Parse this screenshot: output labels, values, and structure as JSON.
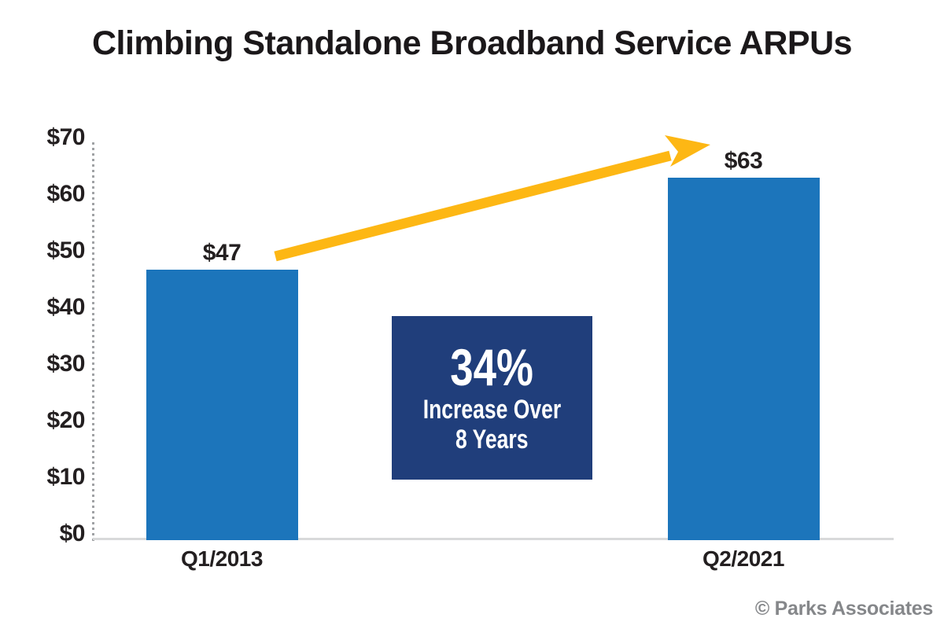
{
  "chart_data": {
    "type": "bar",
    "title": "Climbing Standalone Broadband Service ARPUs",
    "categories": [
      "Q1/2013",
      "Q2/2021"
    ],
    "values": [
      47,
      63
    ],
    "value_labels": [
      "$47",
      "$63"
    ],
    "yticks": [
      "$70",
      "$60",
      "$50",
      "$40",
      "$30",
      "$20",
      "$10",
      "$0"
    ],
    "ylim": [
      0,
      70
    ],
    "ytick_step": 10,
    "xlabel": "",
    "ylabel": "",
    "grid": false,
    "legend": "none",
    "bar_orientation": "vertical",
    "annotation": {
      "headline": "34%",
      "line1": "Increase Over",
      "line2": "8 Years"
    },
    "trend_arrow": {
      "from_category": "Q1/2013",
      "to_category": "Q2/2021",
      "direction": "up"
    }
  },
  "credit": "© Parks Associates",
  "colors": {
    "bar": "#1C75BB",
    "annotation_bg": "#203E7B",
    "annotation_text": "#FFFFFF",
    "arrow": "#FDB714",
    "axis_dots": "#A0A2A5",
    "baseline": "#D8D9DA",
    "label_text": "#231F20",
    "credit_text": "#85878A",
    "title_text": "#1B181A",
    "background": "#FFFFFF"
  }
}
